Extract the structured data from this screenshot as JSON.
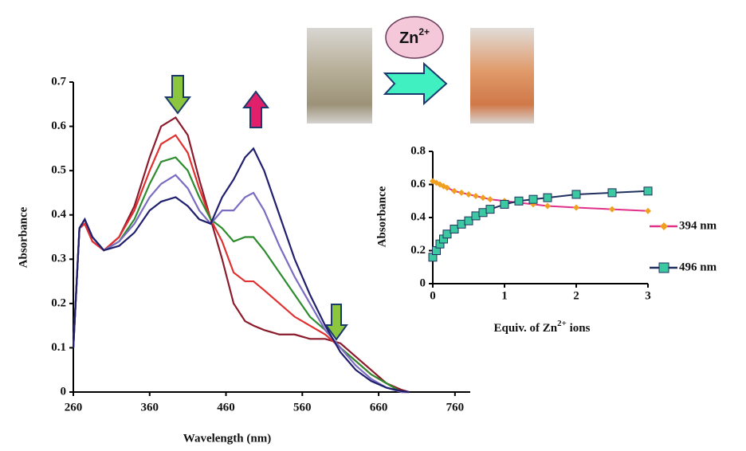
{
  "chart_data": [
    {
      "type": "line",
      "x_label": "Wavelength (nm)",
      "y_label": "Absorbance",
      "xlim": [
        260,
        780
      ],
      "xticks": [
        260,
        360,
        460,
        560,
        660,
        760
      ],
      "ylim": [
        0,
        0.7
      ],
      "yticks": [
        0,
        0.1,
        0.2,
        0.3,
        0.4,
        0.5,
        0.6,
        0.7
      ],
      "markers": false,
      "x": [
        260,
        268,
        275,
        285,
        300,
        320,
        340,
        360,
        375,
        394,
        410,
        425,
        440,
        455,
        470,
        485,
        496,
        510,
        530,
        550,
        570,
        590,
        610,
        630,
        650,
        670,
        690,
        700
      ],
      "series": [
        {
          "color": "#8b1a2b",
          "values": [
            0.1,
            0.37,
            0.38,
            0.34,
            0.32,
            0.35,
            0.42,
            0.53,
            0.6,
            0.62,
            0.58,
            0.48,
            0.39,
            0.3,
            0.2,
            0.16,
            0.15,
            0.14,
            0.13,
            0.13,
            0.12,
            0.12,
            0.11,
            0.08,
            0.05,
            0.02,
            0.005,
            0
          ]
        },
        {
          "color": "#e03030",
          "values": [
            0.1,
            0.37,
            0.38,
            0.34,
            0.32,
            0.35,
            0.41,
            0.5,
            0.56,
            0.58,
            0.54,
            0.46,
            0.39,
            0.34,
            0.27,
            0.25,
            0.25,
            0.23,
            0.2,
            0.17,
            0.15,
            0.13,
            0.1,
            0.07,
            0.04,
            0.02,
            0,
            0
          ]
        },
        {
          "color": "#2e8b2e",
          "values": [
            0.1,
            0.37,
            0.39,
            0.35,
            0.32,
            0.34,
            0.39,
            0.47,
            0.52,
            0.53,
            0.5,
            0.44,
            0.39,
            0.37,
            0.34,
            0.35,
            0.35,
            0.32,
            0.27,
            0.22,
            0.17,
            0.14,
            0.1,
            0.07,
            0.04,
            0.02,
            0,
            0
          ]
        },
        {
          "color": "#7a6cc0",
          "values": [
            0.1,
            0.37,
            0.39,
            0.35,
            0.32,
            0.34,
            0.38,
            0.44,
            0.47,
            0.49,
            0.46,
            0.41,
            0.38,
            0.41,
            0.41,
            0.44,
            0.45,
            0.41,
            0.33,
            0.26,
            0.2,
            0.14,
            0.1,
            0.06,
            0.03,
            0.01,
            0,
            0
          ]
        },
        {
          "color": "#1f1f6e",
          "values": [
            0.1,
            0.37,
            0.39,
            0.35,
            0.32,
            0.33,
            0.36,
            0.41,
            0.43,
            0.44,
            0.42,
            0.39,
            0.38,
            0.44,
            0.48,
            0.53,
            0.55,
            0.5,
            0.4,
            0.3,
            0.22,
            0.15,
            0.09,
            0.05,
            0.025,
            0.01,
            0.002,
            0
          ]
        }
      ]
    },
    {
      "type": "line",
      "x_label": {
        "before": "Equiv. of Zn",
        "sup": "2+",
        "after": " ions"
      },
      "y_label": "Absorbance",
      "xlim": [
        0,
        3
      ],
      "xticks": [
        0,
        1,
        2,
        3
      ],
      "ylim": [
        0,
        0.8
      ],
      "yticks": [
        0,
        0.2,
        0.4,
        0.6,
        0.8
      ],
      "markers": true,
      "x": [
        0,
        0.05,
        0.1,
        0.15,
        0.2,
        0.3,
        0.4,
        0.5,
        0.6,
        0.7,
        0.8,
        1.0,
        1.2,
        1.4,
        1.6,
        2.0,
        2.5,
        3.0
      ],
      "series": [
        {
          "name": "394 nm",
          "color": "#f0a020",
          "line_color": "#e0308a",
          "marker": "diamond",
          "values": [
            0.62,
            0.61,
            0.6,
            0.59,
            0.58,
            0.56,
            0.55,
            0.54,
            0.53,
            0.52,
            0.51,
            0.5,
            0.49,
            0.48,
            0.47,
            0.46,
            0.45,
            0.44
          ]
        },
        {
          "name": "496 nm",
          "color": "#3cc8a0",
          "line_color": "#1f2f5e",
          "marker": "square",
          "values": [
            0.16,
            0.2,
            0.24,
            0.27,
            0.3,
            0.33,
            0.36,
            0.38,
            0.41,
            0.43,
            0.45,
            0.48,
            0.5,
            0.51,
            0.52,
            0.54,
            0.55,
            0.56
          ]
        }
      ]
    }
  ],
  "badge": {
    "base": "Zn",
    "sup": "2+"
  }
}
